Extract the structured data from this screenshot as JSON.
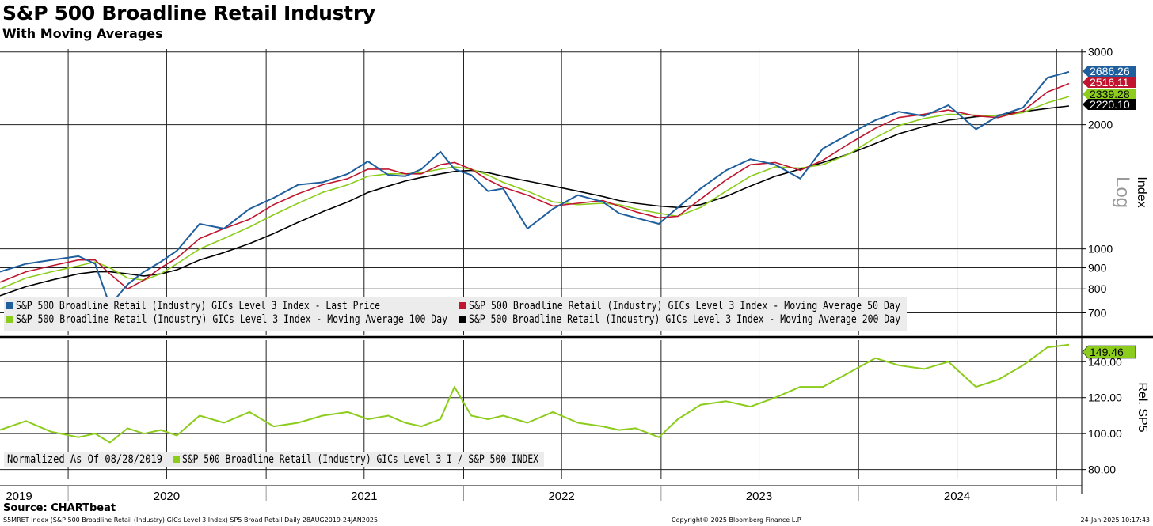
{
  "header": {
    "title": "S&P 500 Broadline Retail Industry",
    "subtitle": "With Moving Averages"
  },
  "footer": {
    "source": "Source: CHARTbeat",
    "description": "S5MRET Index (S&P 500 Broadline Retail (Industry) GICs Level 3 Index) SP5 Broad Retail  Daily 28AUG2019-24JAN2025",
    "copyright": "Copyright© 2025 Bloomberg Finance L.P.",
    "date": "24-Jan-2025 10:17:43"
  },
  "colors": {
    "last_price": "#1f5f9e",
    "ma50": "#c0152f",
    "ma100": "#8ccc1c",
    "ma200": "#000000",
    "relative": "#8ccc1c"
  },
  "chart_data": [
    {
      "type": "line",
      "panel": "upper",
      "scale": "log",
      "ylabel": "Index",
      "scale_label": "Log",
      "ylim": [
        620,
        3050
      ],
      "yticks": [
        700,
        800,
        900,
        1000,
        2000,
        3000
      ],
      "grid": true,
      "legend_position": "bottom-left",
      "last_values": {
        "last_price": "2686.26",
        "ma50": "2516.11",
        "ma100": "2339.28",
        "ma200": "2220.10"
      },
      "x": [
        "2019-08-28",
        "2019-10-15",
        "2019-12-01",
        "2020-01-20",
        "2020-02-20",
        "2020-03-18",
        "2020-04-20",
        "2020-05-20",
        "2020-06-20",
        "2020-07-20",
        "2020-08-31",
        "2020-10-15",
        "2020-12-01",
        "2021-01-15",
        "2021-03-01",
        "2021-04-15",
        "2021-06-01",
        "2021-07-08",
        "2021-08-15",
        "2021-09-15",
        "2021-10-15",
        "2021-11-19",
        "2021-12-15",
        "2022-01-15",
        "2022-02-15",
        "2022-03-15",
        "2022-04-29",
        "2022-06-15",
        "2022-07-31",
        "2022-09-15",
        "2022-10-15",
        "2022-11-15",
        "2022-12-28",
        "2023-02-01",
        "2023-03-15",
        "2023-05-01",
        "2023-06-15",
        "2023-07-31",
        "2023-09-15",
        "2023-10-27",
        "2023-12-15",
        "2024-02-01",
        "2024-03-15",
        "2024-05-01",
        "2024-06-15",
        "2024-08-05",
        "2024-09-15",
        "2024-10-31",
        "2024-12-15",
        "2025-01-24"
      ],
      "series": [
        {
          "name": "S&P 500 Broadline Retail (Industry) GICs Level 3 Index - Last Price",
          "key": "last_price",
          "values": [
            880,
            920,
            940,
            960,
            920,
            730,
            820,
            880,
            930,
            990,
            1150,
            1120,
            1250,
            1330,
            1430,
            1450,
            1520,
            1630,
            1510,
            1500,
            1560,
            1720,
            1560,
            1510,
            1380,
            1400,
            1120,
            1250,
            1350,
            1300,
            1220,
            1190,
            1150,
            1260,
            1400,
            1550,
            1650,
            1600,
            1480,
            1750,
            1900,
            2050,
            2150,
            2100,
            2230,
            1950,
            2100,
            2200,
            2600,
            2686.26
          ]
        },
        {
          "name": "S&P 500 Broadline Retail (Industry) GICs Level 3 Index - Moving Average 50 Day",
          "key": "ma50",
          "values": [
            830,
            880,
            910,
            940,
            940,
            870,
            800,
            840,
            900,
            950,
            1060,
            1120,
            1180,
            1280,
            1360,
            1430,
            1480,
            1560,
            1560,
            1520,
            1520,
            1600,
            1620,
            1560,
            1470,
            1410,
            1350,
            1270,
            1290,
            1310,
            1270,
            1230,
            1190,
            1200,
            1320,
            1470,
            1600,
            1620,
            1550,
            1640,
            1800,
            1960,
            2080,
            2120,
            2170,
            2100,
            2080,
            2160,
            2400,
            2516.11
          ]
        },
        {
          "name": "S&P 500 Broadline Retail (Industry) GICs Level 3 Index - Moving Average 100 Day",
          "key": "ma100",
          "values": [
            800,
            850,
            880,
            910,
            930,
            900,
            850,
            840,
            870,
            920,
            1000,
            1060,
            1130,
            1210,
            1290,
            1370,
            1430,
            1500,
            1520,
            1520,
            1530,
            1560,
            1580,
            1560,
            1510,
            1450,
            1380,
            1300,
            1280,
            1290,
            1280,
            1250,
            1220,
            1200,
            1260,
            1380,
            1500,
            1580,
            1570,
            1600,
            1700,
            1860,
            1990,
            2070,
            2120,
            2110,
            2100,
            2140,
            2260,
            2339.28
          ]
        },
        {
          "name": "S&P 500 Broadline Retail (Industry) GICs Level 3 Index - Moving Average 200 Day",
          "key": "ma200",
          "values": [
            770,
            810,
            840,
            870,
            880,
            880,
            870,
            860,
            870,
            890,
            940,
            980,
            1030,
            1090,
            1160,
            1230,
            1300,
            1370,
            1420,
            1460,
            1490,
            1520,
            1540,
            1550,
            1530,
            1500,
            1460,
            1420,
            1380,
            1340,
            1310,
            1290,
            1270,
            1260,
            1280,
            1340,
            1420,
            1500,
            1560,
            1620,
            1700,
            1800,
            1900,
            1980,
            2050,
            2090,
            2110,
            2150,
            2190,
            2220.1
          ]
        }
      ]
    },
    {
      "type": "line",
      "panel": "lower",
      "scale": "linear",
      "ylabel": "Rel. SP5",
      "ylim": [
        75,
        152
      ],
      "yticks": [
        "80.00",
        "100.00",
        "120.00",
        "140.00"
      ],
      "grid": true,
      "last_value": "149.46",
      "legend_position": "bottom-left",
      "legend_note": "Normalized As Of 08/28/2019",
      "x": [
        "2019-08-28",
        "2019-10-15",
        "2019-12-01",
        "2020-01-20",
        "2020-02-20",
        "2020-03-18",
        "2020-04-20",
        "2020-05-20",
        "2020-06-20",
        "2020-07-20",
        "2020-08-31",
        "2020-10-15",
        "2020-12-01",
        "2021-01-15",
        "2021-03-01",
        "2021-04-15",
        "2021-06-01",
        "2021-07-08",
        "2021-08-15",
        "2021-09-15",
        "2021-10-15",
        "2021-11-19",
        "2021-12-15",
        "2022-01-15",
        "2022-02-15",
        "2022-03-15",
        "2022-04-29",
        "2022-06-15",
        "2022-07-31",
        "2022-09-15",
        "2022-10-15",
        "2022-11-15",
        "2022-12-28",
        "2023-02-01",
        "2023-03-15",
        "2023-05-01",
        "2023-06-15",
        "2023-07-31",
        "2023-09-15",
        "2023-10-27",
        "2023-12-15",
        "2024-02-01",
        "2024-03-15",
        "2024-05-01",
        "2024-06-15",
        "2024-08-05",
        "2024-09-15",
        "2024-10-31",
        "2024-12-15",
        "2025-01-24"
      ],
      "series": [
        {
          "name": "S&P 500 Broadline Retail (Industry) GICs Level 3 I / S&P 500 INDEX",
          "key": "relative",
          "values": [
            102,
            107,
            101,
            98,
            100,
            95,
            103,
            100,
            102,
            99,
            110,
            106,
            112,
            104,
            106,
            110,
            112,
            108,
            110,
            106,
            104,
            108,
            126,
            110,
            108,
            110,
            106,
            112,
            106,
            104,
            102,
            103,
            98,
            108,
            116,
            118,
            115,
            120,
            126,
            126,
            134,
            142,
            138,
            136,
            140,
            126,
            130,
            138,
            148,
            149.46
          ]
        }
      ]
    }
  ],
  "xaxis": {
    "years": [
      "2019",
      "2020",
      "2021",
      "2022",
      "2023",
      "2024"
    ]
  }
}
